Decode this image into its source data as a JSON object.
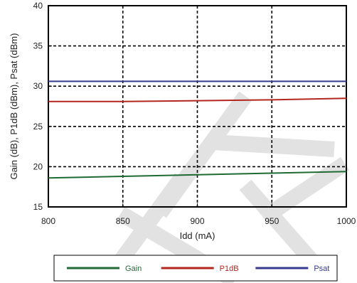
{
  "chart_data": {
    "type": "line",
    "xlabel": "Idd (mA)",
    "ylabel": "Gain (dB), P1dB (dBm), Psat (dBm)",
    "xlim": [
      800,
      1000
    ],
    "ylim": [
      15,
      40
    ],
    "x_ticks": [
      800,
      850,
      900,
      950,
      1000
    ],
    "y_ticks": [
      15,
      20,
      25,
      30,
      35,
      40
    ],
    "grid": true,
    "legend_position": "bottom",
    "x": [
      800,
      850,
      900,
      950,
      1000
    ],
    "series": [
      {
        "name": "Gain",
        "color": "#1e6b34",
        "values": [
          18.6,
          18.8,
          19.0,
          19.2,
          19.4
        ]
      },
      {
        "name": "P1dB",
        "color": "#b3261e",
        "values": [
          28.1,
          28.1,
          28.2,
          28.3,
          28.5
        ]
      },
      {
        "name": "Psat",
        "color": "#353a8c",
        "values": [
          30.6,
          30.6,
          30.6,
          30.6,
          30.6
        ]
      }
    ]
  }
}
